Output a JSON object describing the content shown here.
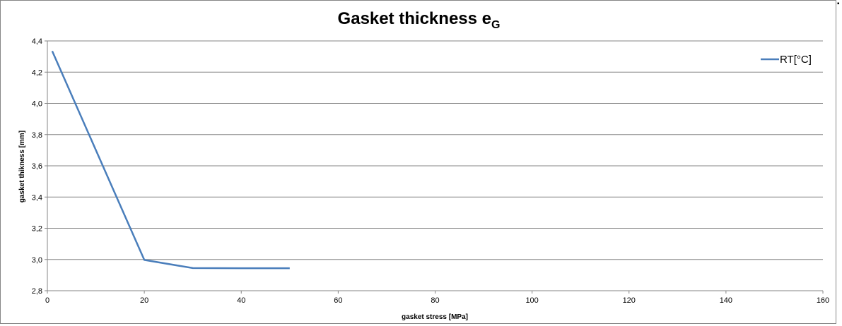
{
  "chart_data": {
    "type": "line",
    "title": "Gasket thickness e",
    "title_subscript": "G",
    "xlabel": "gasket stress [MPa]",
    "ylabel": "gasket thikness [mm]",
    "xlim": [
      0,
      160
    ],
    "ylim": [
      2.8,
      4.4
    ],
    "x_ticks": [
      "0",
      "20",
      "40",
      "60",
      "80",
      "100",
      "120",
      "140",
      "160"
    ],
    "y_ticks": [
      "2,8",
      "3,0",
      "3,2",
      "3,4",
      "3,6",
      "3,8",
      "4,0",
      "4,2",
      "4,4"
    ],
    "grid": "horizontal",
    "legend": "top-right",
    "series": [
      {
        "name": "RT[°C]",
        "color": "#4a7ebb",
        "x": [
          1,
          20,
          30,
          40,
          50
        ],
        "y": [
          4.335,
          2.997,
          2.945,
          2.944,
          2.944
        ]
      }
    ]
  }
}
